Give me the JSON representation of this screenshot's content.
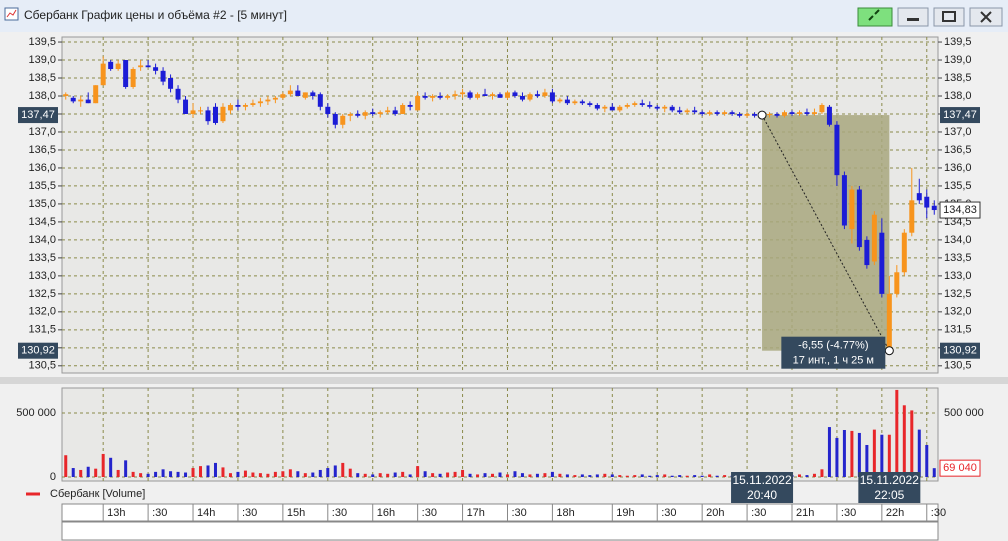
{
  "window": {
    "title": "Сбербанк График цены и объёма #2 - [5 минут]"
  },
  "chart_data": [
    {
      "type": "candlestick",
      "up_color": "#f7941d",
      "down_color": "#1c1cd6",
      "grid": true,
      "xlim": [
        -0.5,
        116.5
      ],
      "xticks": [
        {
          "value": 5,
          "label": "13h"
        },
        {
          "value": 11,
          "label": ":30"
        },
        {
          "value": 17,
          "label": "14h"
        },
        {
          "value": 23,
          "label": ":30"
        },
        {
          "value": 29,
          "label": "15h"
        },
        {
          "value": 35,
          "label": ":30"
        },
        {
          "value": 41,
          "label": "16h"
        },
        {
          "value": 47,
          "label": ":30"
        },
        {
          "value": 53,
          "label": "17h"
        },
        {
          "value": 59,
          "label": ":30"
        },
        {
          "value": 65,
          "label": "18h"
        },
        {
          "value": 73,
          "label": "19h"
        },
        {
          "value": 79,
          "label": ":30"
        },
        {
          "value": 85,
          "label": "20h"
        },
        {
          "value": 91,
          "label": ":30"
        },
        {
          "value": 97,
          "label": "21h"
        },
        {
          "value": 103,
          "label": ":30"
        },
        {
          "value": 109,
          "label": "22h"
        },
        {
          "value": 115,
          "label": ":30"
        }
      ],
      "ylim": [
        130.3,
        139.64
      ],
      "yticks": [
        {
          "value": 130.5,
          "label": "130,5"
        },
        {
          "value": 131,
          "label": "131,0"
        },
        {
          "value": 131.5,
          "label": "131,5"
        },
        {
          "value": 132,
          "label": "132,0"
        },
        {
          "value": 132.5,
          "label": "132,5"
        },
        {
          "value": 133,
          "label": "133,0"
        },
        {
          "value": 133.5,
          "label": "133,5"
        },
        {
          "value": 134,
          "label": "134,0"
        },
        {
          "value": 134.5,
          "label": "134,5"
        },
        {
          "value": 135,
          "label": "135,0"
        },
        {
          "value": 135.5,
          "label": "135,5"
        },
        {
          "value": 136,
          "label": "136,0"
        },
        {
          "value": 136.5,
          "label": "136,5"
        },
        {
          "value": 137,
          "label": "137,0"
        },
        {
          "value": 137.5,
          "label": "137,5"
        },
        {
          "value": 138,
          "label": "138,0"
        },
        {
          "value": 138.5,
          "label": "138,5"
        },
        {
          "value": 139,
          "label": "139,0"
        },
        {
          "value": 139.5,
          "label": "139,5"
        }
      ],
      "open": [
        138.0,
        137.95,
        137.85,
        137.9,
        137.8,
        138.3,
        138.95,
        138.75,
        139.0,
        138.25,
        138.8,
        138.85,
        138.8,
        138.7,
        138.5,
        138.2,
        137.9,
        137.5,
        137.6,
        137.6,
        137.7,
        137.3,
        137.6,
        137.75,
        137.7,
        137.75,
        137.8,
        137.85,
        137.9,
        137.95,
        138.05,
        138.15,
        137.95,
        138.1,
        138.05,
        137.7,
        137.5,
        137.2,
        137.45,
        137.5,
        137.45,
        137.55,
        137.5,
        137.55,
        137.6,
        137.5,
        137.75,
        137.6,
        138.0,
        137.95,
        138.0,
        137.95,
        138.0,
        138.05,
        138.1,
        137.95,
        138.05,
        138.0,
        138.05,
        137.95,
        138.1,
        138.0,
        137.9,
        138.05,
        138.0,
        138.1,
        137.85,
        137.9,
        137.8,
        137.85,
        137.8,
        137.75,
        137.65,
        137.7,
        137.6,
        137.7,
        137.75,
        137.8,
        137.75,
        137.7,
        137.65,
        137.7,
        137.6,
        137.55,
        137.6,
        137.55,
        137.5,
        137.55,
        137.5,
        137.55,
        137.5,
        137.45,
        137.5,
        137.45,
        137.47,
        137.5,
        137.45,
        137.55,
        137.5,
        137.55,
        137.5,
        137.55,
        137.7,
        137.2,
        135.8,
        134.3,
        135.4,
        134.0,
        133.4,
        134.2,
        131.0,
        132.5,
        133.1,
        134.2,
        135.3,
        135.2,
        134.95
      ],
      "high": [
        138.1,
        138.0,
        138.0,
        138.1,
        138.3,
        139.1,
        139.0,
        139.0,
        139.0,
        138.8,
        139.0,
        139.0,
        138.9,
        138.8,
        138.6,
        138.3,
        138.0,
        137.8,
        137.7,
        137.7,
        137.8,
        137.8,
        137.8,
        137.9,
        137.8,
        137.9,
        137.95,
        138.0,
        138.0,
        138.1,
        138.3,
        138.3,
        138.1,
        138.15,
        138.1,
        137.8,
        137.55,
        137.5,
        137.55,
        137.6,
        137.6,
        137.65,
        137.6,
        137.7,
        137.7,
        137.8,
        137.85,
        138.1,
        138.1,
        138.05,
        138.1,
        138.05,
        138.15,
        138.2,
        138.15,
        138.1,
        138.2,
        138.1,
        138.1,
        138.15,
        138.15,
        138.1,
        138.1,
        138.15,
        138.2,
        138.2,
        137.95,
        138.0,
        137.9,
        137.9,
        137.85,
        137.8,
        137.75,
        137.8,
        137.75,
        137.8,
        137.85,
        137.9,
        137.85,
        137.75,
        137.75,
        137.75,
        137.7,
        137.65,
        137.7,
        137.6,
        137.6,
        137.6,
        137.6,
        137.6,
        137.55,
        137.55,
        137.55,
        137.55,
        137.55,
        137.55,
        137.6,
        137.6,
        137.6,
        137.65,
        137.65,
        137.8,
        137.75,
        137.3,
        135.9,
        135.5,
        135.5,
        134.1,
        134.8,
        134.6,
        133.0,
        133.3,
        134.3,
        136.0,
        135.7,
        135.4,
        135.1
      ],
      "low": [
        137.9,
        137.8,
        137.7,
        137.8,
        137.8,
        138.3,
        138.7,
        138.7,
        138.2,
        138.2,
        138.7,
        138.8,
        138.6,
        138.3,
        138.1,
        137.8,
        137.5,
        137.4,
        137.5,
        137.2,
        137.2,
        137.25,
        137.5,
        137.6,
        137.6,
        137.7,
        137.7,
        137.75,
        137.8,
        137.9,
        138.0,
        138.0,
        137.9,
        137.9,
        137.6,
        137.4,
        137.1,
        137.1,
        137.3,
        137.4,
        137.35,
        137.45,
        137.4,
        137.5,
        137.45,
        137.5,
        137.6,
        137.6,
        137.9,
        137.85,
        137.9,
        137.9,
        137.9,
        137.95,
        137.9,
        137.9,
        138.0,
        137.9,
        137.95,
        137.9,
        137.95,
        137.85,
        137.85,
        137.95,
        137.95,
        137.8,
        137.8,
        137.75,
        137.75,
        137.75,
        137.7,
        137.6,
        137.55,
        137.6,
        137.55,
        137.65,
        137.7,
        137.7,
        137.65,
        137.6,
        137.55,
        137.55,
        137.5,
        137.5,
        137.5,
        137.45,
        137.45,
        137.45,
        137.45,
        137.45,
        137.4,
        137.4,
        137.4,
        137.4,
        137.4,
        137.4,
        137.4,
        137.45,
        137.45,
        137.45,
        137.45,
        137.5,
        137.15,
        135.5,
        134.3,
        133.9,
        133.7,
        133.2,
        133.3,
        132.4,
        130.92,
        132.4,
        133.0,
        134.1,
        135.0,
        134.6,
        134.7
      ],
      "close": [
        138.05,
        137.85,
        137.9,
        137.8,
        138.3,
        138.9,
        138.75,
        138.9,
        138.25,
        138.75,
        138.85,
        138.8,
        138.7,
        138.4,
        138.2,
        137.9,
        137.5,
        137.6,
        137.6,
        137.3,
        137.25,
        137.7,
        137.75,
        137.7,
        137.75,
        137.8,
        137.85,
        137.9,
        137.95,
        138.05,
        138.15,
        138.0,
        138.1,
        138.0,
        137.7,
        137.5,
        137.2,
        137.45,
        137.5,
        137.45,
        137.55,
        137.5,
        137.55,
        137.6,
        137.5,
        137.75,
        137.7,
        138.0,
        137.95,
        138.0,
        137.95,
        138.0,
        138.05,
        138.1,
        137.95,
        138.05,
        138.0,
        138.05,
        137.95,
        138.1,
        138.0,
        137.9,
        138.05,
        138.0,
        138.1,
        137.85,
        137.9,
        137.8,
        137.85,
        137.8,
        137.75,
        137.65,
        137.7,
        137.6,
        137.7,
        137.75,
        137.8,
        137.75,
        137.7,
        137.65,
        137.7,
        137.6,
        137.55,
        137.6,
        137.55,
        137.5,
        137.55,
        137.5,
        137.55,
        137.5,
        137.45,
        137.5,
        137.45,
        137.47,
        137.5,
        137.45,
        137.55,
        137.5,
        137.55,
        137.5,
        137.55,
        137.75,
        137.2,
        135.8,
        134.4,
        135.4,
        133.8,
        133.3,
        134.7,
        132.5,
        132.5,
        133.1,
        134.2,
        135.1,
        135.1,
        134.9,
        134.83
      ],
      "measure": {
        "fill": "#a8a77e",
        "start": {
          "index": 93,
          "price": {
            "value": 137.47,
            "label": "137,47"
          },
          "date": "15.11.2022",
          "time": "20:40"
        },
        "end": {
          "index": 110,
          "price": {
            "value": 130.92,
            "label": "130,92"
          },
          "date": "15.11.2022",
          "time": "22:05"
        },
        "change_label": "-6,55 (-4.77%)",
        "span_label": "17 инт., 1 ч 25 м"
      },
      "last_price": {
        "value": 134.83,
        "label": "134,83"
      }
    },
    {
      "type": "bar",
      "up_color": "#e8262a",
      "down_color": "#2424cc",
      "grid": true,
      "ylim": [
        0,
        695000
      ],
      "yticks": [
        0,
        {
          "value": 500000,
          "label": "500 000"
        }
      ],
      "series": [
        {
          "name": "Сбербанк [Volume]",
          "color": "#e8262a",
          "values": [
            170000,
            70000,
            55000,
            80000,
            65000,
            180000,
            150000,
            55000,
            130000,
            40000,
            30000,
            25000,
            40000,
            60000,
            45000,
            40000,
            35000,
            70000,
            85000,
            90000,
            110000,
            75000,
            30000,
            40000,
            50000,
            35000,
            30000,
            25000,
            40000,
            45000,
            60000,
            45000,
            30000,
            35000,
            55000,
            70000,
            90000,
            110000,
            65000,
            30000,
            25000,
            20000,
            30000,
            25000,
            35000,
            40000,
            20000,
            85000,
            45000,
            30000,
            25000,
            35000,
            40000,
            55000,
            25000,
            20000,
            30000,
            25000,
            35000,
            20000,
            45000,
            30000,
            20000,
            25000,
            30000,
            40000,
            25000,
            20000,
            15000,
            20000,
            15000,
            20000,
            25000,
            20000,
            15000,
            10000,
            15000,
            20000,
            10000,
            15000,
            20000,
            10000,
            15000,
            10000,
            15000,
            10000,
            20000,
            10000,
            15000,
            10000,
            15000,
            10000,
            15000,
            10000,
            20000,
            15000,
            10000,
            15000,
            20000,
            15000,
            25000,
            60000,
            390000,
            305000,
            367000,
            360000,
            344000,
            250000,
            370000,
            330000,
            330000,
            680000,
            560000,
            520000,
            370000,
            250000,
            69040
          ]
        }
      ],
      "last_label": {
        "value": 69040,
        "label": "69 040"
      }
    }
  ]
}
